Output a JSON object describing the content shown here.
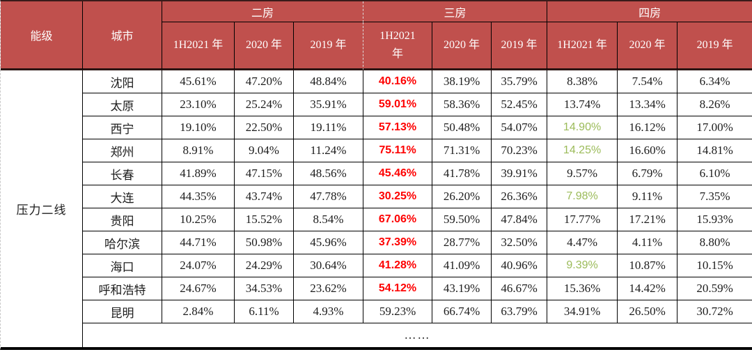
{
  "colors": {
    "header_bg": "#C0504D",
    "header_text": "#FFFFFF",
    "value_red": "#FE0000",
    "value_green": "#9BBB59",
    "body_text": "#1C1C1C"
  },
  "table": {
    "header": {
      "energy_level": "能级",
      "city": "城市",
      "groups": [
        {
          "label": "二房",
          "years": [
            "1H2021 年",
            "2020 年",
            "2019 年"
          ]
        },
        {
          "label": "三房",
          "years": [
            "1H2021\n年",
            "2020 年",
            "2019 年"
          ]
        },
        {
          "label": "四房",
          "years": [
            "1H2021 年",
            "2020 年",
            "2019 年"
          ]
        }
      ]
    },
    "tier_label": "压力二线",
    "rows": [
      {
        "city": "沈阳",
        "cells": [
          {
            "v": "45.61%"
          },
          {
            "v": "47.20%"
          },
          {
            "v": "48.84%"
          },
          {
            "v": "40.16%",
            "c": "red"
          },
          {
            "v": "38.19%"
          },
          {
            "v": "35.79%"
          },
          {
            "v": "8.38%"
          },
          {
            "v": "7.54%"
          },
          {
            "v": "6.34%"
          }
        ]
      },
      {
        "city": "太原",
        "cells": [
          {
            "v": "23.10%"
          },
          {
            "v": "25.24%"
          },
          {
            "v": "35.91%"
          },
          {
            "v": "59.01%",
            "c": "red"
          },
          {
            "v": "58.36%"
          },
          {
            "v": "52.45%"
          },
          {
            "v": "13.74%"
          },
          {
            "v": "13.34%"
          },
          {
            "v": "8.26%"
          }
        ]
      },
      {
        "city": "西宁",
        "cells": [
          {
            "v": "19.10%"
          },
          {
            "v": "22.50%"
          },
          {
            "v": "19.11%"
          },
          {
            "v": "57.13%",
            "c": "red"
          },
          {
            "v": "50.48%"
          },
          {
            "v": "54.07%"
          },
          {
            "v": "14.90%",
            "c": "green"
          },
          {
            "v": "16.12%"
          },
          {
            "v": "17.00%"
          }
        ]
      },
      {
        "city": "郑州",
        "cells": [
          {
            "v": "8.91%"
          },
          {
            "v": "9.04%"
          },
          {
            "v": "11.24%"
          },
          {
            "v": "75.11%",
            "c": "red"
          },
          {
            "v": "71.31%"
          },
          {
            "v": "70.23%"
          },
          {
            "v": "14.25%",
            "c": "green"
          },
          {
            "v": "16.60%"
          },
          {
            "v": "14.81%"
          }
        ]
      },
      {
        "city": "长春",
        "cells": [
          {
            "v": "41.89%"
          },
          {
            "v": "47.15%"
          },
          {
            "v": "48.56%"
          },
          {
            "v": "45.46%",
            "c": "red"
          },
          {
            "v": "41.78%"
          },
          {
            "v": "39.91%"
          },
          {
            "v": "9.57%"
          },
          {
            "v": "6.79%"
          },
          {
            "v": "6.10%"
          }
        ]
      },
      {
        "city": "大连",
        "cells": [
          {
            "v": "44.35%"
          },
          {
            "v": "43.74%"
          },
          {
            "v": "47.78%"
          },
          {
            "v": "30.25%",
            "c": "red"
          },
          {
            "v": "26.20%"
          },
          {
            "v": "26.36%"
          },
          {
            "v": "7.98%",
            "c": "green"
          },
          {
            "v": "9.11%"
          },
          {
            "v": "7.35%"
          }
        ]
      },
      {
        "city": "贵阳",
        "cells": [
          {
            "v": "10.25%"
          },
          {
            "v": "15.52%"
          },
          {
            "v": "8.54%"
          },
          {
            "v": "67.06%",
            "c": "red"
          },
          {
            "v": "59.50%"
          },
          {
            "v": "47.84%"
          },
          {
            "v": "17.77%"
          },
          {
            "v": "17.21%"
          },
          {
            "v": "15.93%"
          }
        ]
      },
      {
        "city": "哈尔滨",
        "cells": [
          {
            "v": "44.71%"
          },
          {
            "v": "50.98%"
          },
          {
            "v": "45.96%"
          },
          {
            "v": "37.39%",
            "c": "red"
          },
          {
            "v": "28.77%"
          },
          {
            "v": "32.50%"
          },
          {
            "v": "4.47%"
          },
          {
            "v": "4.11%"
          },
          {
            "v": "8.80%"
          }
        ]
      },
      {
        "city": "海口",
        "cells": [
          {
            "v": "24.07%"
          },
          {
            "v": "24.29%"
          },
          {
            "v": "30.64%"
          },
          {
            "v": "41.28%",
            "c": "red"
          },
          {
            "v": "41.09%"
          },
          {
            "v": "40.96%"
          },
          {
            "v": "9.39%",
            "c": "green"
          },
          {
            "v": "10.87%"
          },
          {
            "v": "10.15%"
          }
        ]
      },
      {
        "city": "呼和浩特",
        "cells": [
          {
            "v": "24.67%"
          },
          {
            "v": "34.53%"
          },
          {
            "v": "23.62%"
          },
          {
            "v": "54.12%",
            "c": "red"
          },
          {
            "v": "43.19%"
          },
          {
            "v": "46.67%"
          },
          {
            "v": "15.36%"
          },
          {
            "v": "14.42%"
          },
          {
            "v": "20.59%"
          }
        ]
      },
      {
        "city": "昆明",
        "cells": [
          {
            "v": "2.84%"
          },
          {
            "v": "6.11%"
          },
          {
            "v": "4.93%"
          },
          {
            "v": "59.23%"
          },
          {
            "v": "66.74%"
          },
          {
            "v": "63.79%"
          },
          {
            "v": "34.91%"
          },
          {
            "v": "26.50%"
          },
          {
            "v": "30.72%"
          }
        ]
      }
    ],
    "ellipsis": "……"
  }
}
